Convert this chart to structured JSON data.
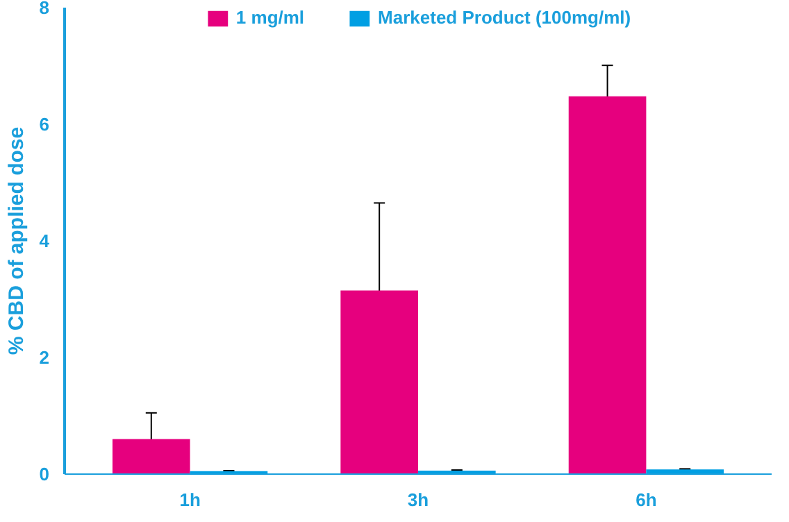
{
  "chart_data": {
    "type": "bar",
    "ylabel": "% CBD of applied dose",
    "categories": [
      "1h",
      "3h",
      "6h"
    ],
    "series": [
      {
        "name": "1 mg/ml",
        "color": "#e6007e",
        "values": [
          0.6,
          3.15,
          6.48
        ],
        "errors": [
          0.45,
          1.5,
          0.53
        ]
      },
      {
        "name": "Marketed Product (100mg/ml)",
        "color": "#009fe3",
        "values": [
          0.05,
          0.06,
          0.08
        ],
        "errors": [
          0.01,
          0.01,
          0.01
        ]
      }
    ],
    "ylim": [
      0,
      8
    ],
    "yticks": [
      0,
      2,
      4,
      6,
      8
    ],
    "grid": false,
    "legend": "top"
  }
}
